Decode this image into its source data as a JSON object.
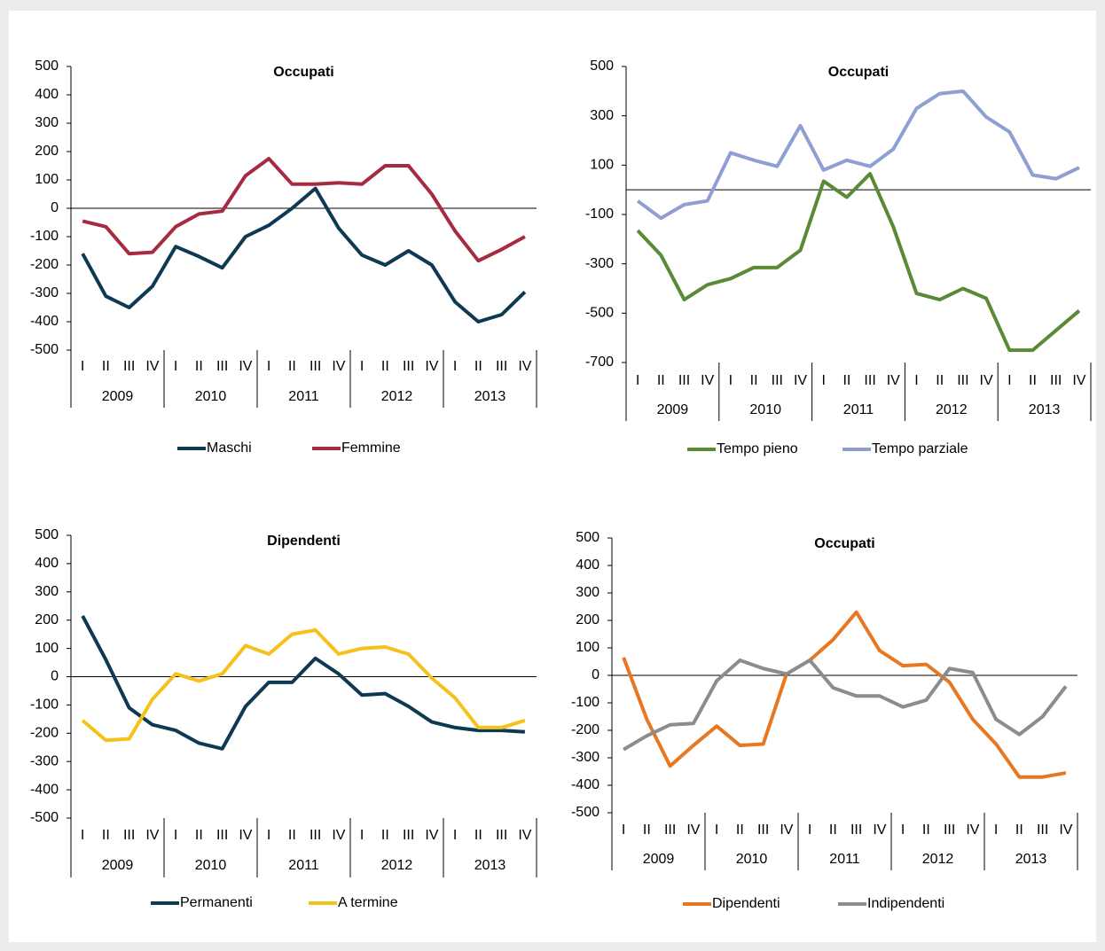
{
  "chart_data": [
    {
      "type": "line",
      "title": "Occupati",
      "categories": [
        "I",
        "II",
        "III",
        "IV",
        "I",
        "II",
        "III",
        "IV",
        "I",
        "II",
        "III",
        "IV",
        "I",
        "II",
        "III",
        "IV",
        "I",
        "II",
        "III",
        "IV"
      ],
      "groups": [
        "2009",
        "2010",
        "2011",
        "2012",
        "2013"
      ],
      "series": [
        {
          "name": "Maschi",
          "color": "#0d3a52",
          "values": [
            -160,
            -310,
            -350,
            -275,
            -135,
            -170,
            -210,
            -100,
            -60,
            0,
            70,
            -70,
            -165,
            -200,
            -150,
            -200,
            -330,
            -400,
            -375,
            -295
          ]
        },
        {
          "name": "Femmine",
          "color": "#a52a42",
          "values": [
            -45,
            -65,
            -160,
            -155,
            -65,
            -20,
            -10,
            115,
            175,
            85,
            85,
            90,
            85,
            150,
            150,
            50,
            -80,
            -185,
            -145,
            -100
          ]
        }
      ],
      "ylim": [
        -500,
        500
      ],
      "yticks": [
        500,
        400,
        300,
        200,
        100,
        0,
        -100,
        -200,
        -300,
        -400,
        -500
      ]
    },
    {
      "type": "line",
      "title": "Occupati",
      "categories": [
        "I",
        "II",
        "III",
        "IV",
        "I",
        "II",
        "III",
        "IV",
        "I",
        "II",
        "III",
        "IV",
        "I",
        "II",
        "III",
        "IV",
        "I",
        "II",
        "III",
        "IV"
      ],
      "groups": [
        "2009",
        "2010",
        "2011",
        "2012",
        "2013"
      ],
      "series": [
        {
          "name": "Tempo pieno",
          "color": "#5a8a35",
          "values": [
            -165,
            -265,
            -445,
            -385,
            -360,
            -315,
            -315,
            -245,
            35,
            -30,
            65,
            -150,
            -420,
            -445,
            -400,
            -440,
            -650,
            -650,
            -570,
            -490
          ]
        },
        {
          "name": "Tempo parziale",
          "color": "#8f9fd4",
          "values": [
            -45,
            -115,
            -60,
            -45,
            150,
            120,
            95,
            260,
            80,
            120,
            95,
            165,
            330,
            390,
            400,
            295,
            235,
            60,
            45,
            90
          ]
        }
      ],
      "ylim": [
        -700,
        500
      ],
      "yticks": [
        500,
        300,
        100,
        -100,
        -300,
        -500,
        -700
      ]
    },
    {
      "type": "line",
      "title": "Dipendenti",
      "categories": [
        "I",
        "II",
        "III",
        "IV",
        "I",
        "II",
        "III",
        "IV",
        "I",
        "II",
        "III",
        "IV",
        "I",
        "II",
        "III",
        "IV",
        "I",
        "II",
        "III",
        "IV"
      ],
      "groups": [
        "2009",
        "2010",
        "2011",
        "2012",
        "2013"
      ],
      "series": [
        {
          "name": "Permanenti",
          "color": "#0d3a52",
          "values": [
            215,
            60,
            -110,
            -170,
            -190,
            -235,
            -255,
            -105,
            -20,
            -20,
            65,
            10,
            -65,
            -60,
            -105,
            -160,
            -180,
            -190,
            -190,
            -195
          ]
        },
        {
          "name": "A termine",
          "color": "#f5c11a",
          "values": [
            -155,
            -225,
            -220,
            -80,
            10,
            -15,
            10,
            110,
            80,
            150,
            165,
            80,
            100,
            105,
            80,
            -5,
            -75,
            -180,
            -180,
            -155
          ]
        }
      ],
      "ylim": [
        -500,
        500
      ],
      "yticks": [
        500,
        400,
        300,
        200,
        100,
        0,
        -100,
        -200,
        -300,
        -400,
        -500
      ]
    },
    {
      "type": "line",
      "title": "Occupati",
      "categories": [
        "I",
        "II",
        "III",
        "IV",
        "I",
        "II",
        "III",
        "IV",
        "I",
        "II",
        "III",
        "IV",
        "I",
        "II",
        "III",
        "IV",
        "I",
        "II",
        "III",
        "IV"
      ],
      "groups": [
        "2009",
        "2010",
        "2011",
        "2012",
        "2013"
      ],
      "series": [
        {
          "name": "Dipendenti",
          "color": "#e87722",
          "values": [
            65,
            -160,
            -330,
            -255,
            -185,
            -255,
            -250,
            5,
            55,
            130,
            230,
            90,
            35,
            40,
            -25,
            -160,
            -250,
            -370,
            -370,
            -355
          ]
        },
        {
          "name": "Indipendenti",
          "color": "#8c8c8c",
          "values": [
            -270,
            -220,
            -180,
            -175,
            -20,
            55,
            25,
            5,
            55,
            -45,
            -75,
            -75,
            -115,
            -90,
            25,
            10,
            -160,
            -215,
            -150,
            -40
          ]
        }
      ],
      "ylim": [
        -500,
        500
      ],
      "yticks": [
        500,
        400,
        300,
        200,
        100,
        0,
        -100,
        -200,
        -300,
        -400,
        -500
      ]
    }
  ]
}
